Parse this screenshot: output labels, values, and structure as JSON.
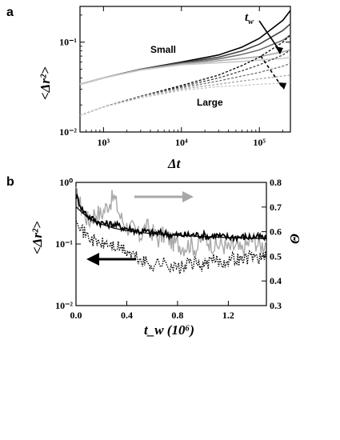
{
  "chart_data": [
    {
      "panel_label": "a",
      "type": "line",
      "xscale": "log",
      "yscale": "log",
      "xlim": [
        500,
        250000
      ],
      "ylim": [
        0.01,
        0.25
      ],
      "x_ticks": [
        "10³",
        "10⁴",
        "10⁵"
      ],
      "y_ticks": [
        "10⁻²",
        "10⁻¹"
      ],
      "xlabel": "Δt",
      "ylabel": "<Δr²>",
      "annotations": {
        "small": "Small",
        "large": "Large",
        "tw": "t_w"
      },
      "colors": {
        "dark": "#000000",
        "mid": "#707070",
        "light": "#a8a8a8",
        "lighter": "#c8c8c8"
      },
      "series": [
        {
          "group": "small",
          "style": "solid",
          "color": "#000000",
          "x": [
            500,
            1000,
            3000,
            10000,
            30000,
            60000,
            100000,
            200000,
            250000
          ],
          "y": [
            0.034,
            0.04,
            0.05,
            0.06,
            0.072,
            0.088,
            0.11,
            0.175,
            0.225
          ]
        },
        {
          "group": "small",
          "style": "solid",
          "color": "#404040",
          "x": [
            500,
            1000,
            3000,
            10000,
            30000,
            60000,
            100000,
            200000,
            250000
          ],
          "y": [
            0.034,
            0.04,
            0.05,
            0.059,
            0.068,
            0.08,
            0.095,
            0.135,
            0.16
          ]
        },
        {
          "group": "small",
          "style": "solid",
          "color": "#707070",
          "x": [
            500,
            1000,
            3000,
            10000,
            30000,
            60000,
            100000,
            200000,
            250000
          ],
          "y": [
            0.034,
            0.04,
            0.05,
            0.058,
            0.065,
            0.073,
            0.082,
            0.105,
            0.12
          ]
        },
        {
          "group": "small",
          "style": "solid",
          "color": "#a8a8a8",
          "x": [
            500,
            1000,
            3000,
            10000,
            30000,
            60000,
            100000,
            200000,
            250000
          ],
          "y": [
            0.034,
            0.04,
            0.049,
            0.057,
            0.062,
            0.066,
            0.069,
            0.078,
            0.082
          ]
        },
        {
          "group": "small",
          "style": "solid",
          "color": "#c8c8c8",
          "x": [
            500,
            1000,
            3000,
            10000,
            30000,
            60000,
            100000,
            200000,
            250000
          ],
          "y": [
            0.034,
            0.04,
            0.049,
            0.056,
            0.059,
            0.061,
            0.063,
            0.066,
            0.068
          ]
        },
        {
          "group": "large",
          "style": "dashed",
          "color": "#000000",
          "x": [
            500,
            1000,
            3000,
            10000,
            30000,
            60000,
            100000,
            200000,
            250000
          ],
          "y": [
            0.0153,
            0.019,
            0.025,
            0.033,
            0.043,
            0.055,
            0.068,
            0.1,
            0.12
          ]
        },
        {
          "group": "large",
          "style": "dashed",
          "color": "#404040",
          "x": [
            500,
            1000,
            3000,
            10000,
            30000,
            60000,
            100000,
            200000,
            250000
          ],
          "y": [
            0.0153,
            0.019,
            0.025,
            0.032,
            0.04,
            0.048,
            0.056,
            0.072,
            0.082
          ]
        },
        {
          "group": "large",
          "style": "dashed",
          "color": "#707070",
          "x": [
            500,
            1000,
            3000,
            10000,
            30000,
            60000,
            100000,
            200000,
            250000
          ],
          "y": [
            0.0153,
            0.019,
            0.025,
            0.031,
            0.037,
            0.042,
            0.046,
            0.054,
            0.058
          ]
        },
        {
          "group": "large",
          "style": "dashed",
          "color": "#a8a8a8",
          "x": [
            500,
            1000,
            3000,
            10000,
            30000,
            60000,
            100000,
            200000,
            250000
          ],
          "y": [
            0.0153,
            0.019,
            0.024,
            0.03,
            0.034,
            0.037,
            0.039,
            0.042,
            0.043
          ]
        },
        {
          "group": "large",
          "style": "dashed",
          "color": "#c8c8c8",
          "x": [
            500,
            1000,
            3000,
            10000,
            30000,
            60000,
            100000,
            200000,
            250000
          ],
          "y": [
            0.0153,
            0.019,
            0.024,
            0.029,
            0.032,
            0.033,
            0.034,
            0.035,
            0.036
          ]
        }
      ]
    },
    {
      "panel_label": "b",
      "type": "line",
      "xlim": [
        0,
        1.5
      ],
      "x_ticks": [
        "0.0",
        "0.4",
        "0.8",
        "1.2"
      ],
      "xlabel": "t_w (10⁶)",
      "left_axis": {
        "label": "<Δr²>",
        "scale": "log",
        "ylim": [
          0.01,
          1.0
        ],
        "ticks": [
          "10⁻²",
          "10⁻¹",
          "10⁰"
        ]
      },
      "right_axis": {
        "label": "Θ",
        "scale": "linear",
        "ylim": [
          0.3,
          0.8
        ],
        "ticks": [
          "0.3",
          "0.4",
          "0.5",
          "0.6",
          "0.7",
          "0.8"
        ]
      },
      "arrows": [
        {
          "direction": "right",
          "color": "#a8a8a8",
          "axis": "right"
        },
        {
          "direction": "left",
          "color": "#000000",
          "axis": "left"
        }
      ],
      "series": [
        {
          "kind": "fluctuating",
          "axis": "right",
          "color": "#a8a8a8",
          "x": [
            0.0,
            0.05,
            0.1,
            0.15,
            0.2,
            0.25,
            0.3,
            0.35,
            0.4,
            0.45,
            0.5,
            0.55,
            0.6,
            0.65,
            0.7,
            0.75,
            0.8,
            0.85,
            0.9,
            0.95,
            1.0,
            1.05,
            1.1,
            1.15,
            1.2,
            1.25,
            1.3,
            1.35,
            1.4,
            1.45,
            1.5
          ],
          "y": [
            0.75,
            0.69,
            0.64,
            0.68,
            0.67,
            0.71,
            0.74,
            0.66,
            0.62,
            0.61,
            0.58,
            0.62,
            0.6,
            0.57,
            0.59,
            0.56,
            0.55,
            0.54,
            0.55,
            0.53,
            0.58,
            0.56,
            0.54,
            0.55,
            0.53,
            0.54,
            0.52,
            0.55,
            0.57,
            0.54,
            0.56
          ]
        },
        {
          "kind": "fluctuating",
          "axis": "left",
          "color": "#000000",
          "x": [
            0.0,
            0.05,
            0.1,
            0.15,
            0.2,
            0.25,
            0.3,
            0.35,
            0.4,
            0.45,
            0.5,
            0.55,
            0.6,
            0.65,
            0.7,
            0.75,
            0.8,
            0.85,
            0.9,
            0.95,
            1.0,
            1.05,
            1.1,
            1.15,
            1.2,
            1.25,
            1.3,
            1.35,
            1.4,
            1.45,
            1.5
          ],
          "y": [
            0.6,
            0.36,
            0.28,
            0.24,
            0.22,
            0.21,
            0.21,
            0.19,
            0.18,
            0.17,
            0.16,
            0.16,
            0.15,
            0.15,
            0.15,
            0.14,
            0.14,
            0.14,
            0.14,
            0.14,
            0.14,
            0.13,
            0.14,
            0.13,
            0.13,
            0.13,
            0.13,
            0.13,
            0.13,
            0.13,
            0.12
          ]
        },
        {
          "kind": "fit",
          "axis": "left",
          "color": "#000000",
          "x": [
            0.0,
            0.1,
            0.2,
            0.3,
            0.4,
            0.5,
            0.6,
            0.8,
            1.0,
            1.2,
            1.5
          ],
          "y": [
            0.4,
            0.26,
            0.21,
            0.18,
            0.165,
            0.155,
            0.147,
            0.138,
            0.132,
            0.127,
            0.122
          ]
        },
        {
          "kind": "dotted",
          "axis": "left",
          "color": "#000000",
          "x": [
            0.0,
            0.05,
            0.1,
            0.15,
            0.2,
            0.25,
            0.3,
            0.35,
            0.4,
            0.45,
            0.5,
            0.55,
            0.6,
            0.65,
            0.7,
            0.75,
            0.8,
            0.85,
            0.9,
            0.95,
            1.0,
            1.05,
            1.1,
            1.15,
            1.2,
            1.25,
            1.3,
            1.35,
            1.4,
            1.45,
            1.5
          ],
          "y": [
            0.3,
            0.16,
            0.13,
            0.11,
            0.1,
            0.1,
            0.09,
            0.085,
            0.075,
            0.065,
            0.055,
            0.05,
            0.045,
            0.05,
            0.048,
            0.045,
            0.04,
            0.042,
            0.05,
            0.048,
            0.045,
            0.05,
            0.055,
            0.05,
            0.055,
            0.06,
            0.055,
            0.06,
            0.065,
            0.06,
            0.06
          ]
        }
      ]
    }
  ]
}
